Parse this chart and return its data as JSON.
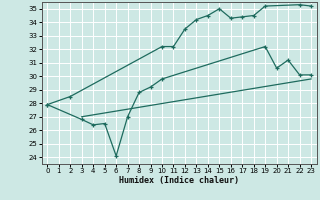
{
  "xlabel": "Humidex (Indice chaleur)",
  "bg_color": "#cde8e4",
  "grid_color": "#ffffff",
  "line_color": "#1e6b5e",
  "xlim": [
    -0.5,
    23.5
  ],
  "ylim": [
    23.5,
    35.5
  ],
  "yticks": [
    24,
    25,
    26,
    27,
    28,
    29,
    30,
    31,
    32,
    33,
    34,
    35
  ],
  "xticks": [
    0,
    1,
    2,
    3,
    4,
    5,
    6,
    7,
    8,
    9,
    10,
    11,
    12,
    13,
    14,
    15,
    16,
    17,
    18,
    19,
    20,
    21,
    22,
    23
  ],
  "line1_x": [
    0,
    2,
    10,
    11,
    12,
    13,
    14,
    15,
    16,
    17,
    18,
    19,
    22,
    23
  ],
  "line1_y": [
    27.9,
    28.5,
    32.2,
    32.2,
    33.5,
    34.2,
    34.5,
    35.0,
    34.3,
    34.4,
    34.5,
    35.2,
    35.3,
    35.2
  ],
  "line2_x": [
    0,
    3,
    4,
    5,
    6,
    7,
    8,
    9,
    10,
    19,
    20,
    21,
    22,
    23
  ],
  "line2_y": [
    27.9,
    26.8,
    26.4,
    26.5,
    24.1,
    27.0,
    28.8,
    29.2,
    29.8,
    32.2,
    30.6,
    31.2,
    30.1,
    30.1
  ],
  "line3_x": [
    3,
    23
  ],
  "line3_y": [
    27.0,
    29.8
  ]
}
